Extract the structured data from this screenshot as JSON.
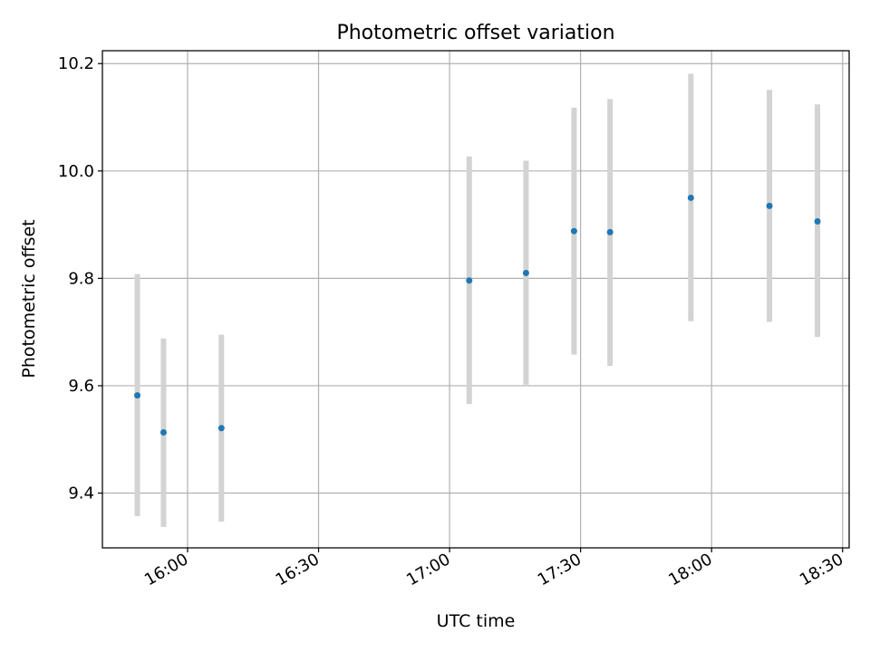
{
  "chart_data": {
    "type": "scatter",
    "title": "Photometric offset variation",
    "xlabel": "UTC time",
    "ylabel": "Photometric offset",
    "x_unit": "HH:MM",
    "xlim": [
      "15:40:30",
      "18:31:30"
    ],
    "ylim": [
      9.298,
      10.224
    ],
    "xticks": [
      "16:00",
      "16:30",
      "17:00",
      "17:30",
      "18:00",
      "18:30"
    ],
    "yticks": [
      9.4,
      9.6,
      9.8,
      10.0,
      10.2
    ],
    "ytick_labels": [
      "9.4",
      "9.6",
      "9.8",
      "10.0",
      "10.2"
    ],
    "grid": true,
    "points": [
      {
        "x": "15:48:30",
        "y": 9.582,
        "err_low": 9.357,
        "err_high": 9.808
      },
      {
        "x": "15:54:30",
        "y": 9.513,
        "err_low": 9.337,
        "err_high": 9.688
      },
      {
        "x": "16:07:45",
        "y": 9.521,
        "err_low": 9.347,
        "err_high": 9.695
      },
      {
        "x": "17:04:30",
        "y": 9.796,
        "err_low": 9.566,
        "err_high": 10.027
      },
      {
        "x": "17:17:30",
        "y": 9.81,
        "err_low": 9.602,
        "err_high": 10.019
      },
      {
        "x": "17:28:30",
        "y": 9.888,
        "err_low": 9.658,
        "err_high": 10.118
      },
      {
        "x": "17:36:45",
        "y": 9.886,
        "err_low": 9.637,
        "err_high": 10.134
      },
      {
        "x": "17:55:15",
        "y": 9.95,
        "err_low": 9.72,
        "err_high": 10.181
      },
      {
        "x": "18:13:15",
        "y": 9.935,
        "err_low": 9.719,
        "err_high": 10.151
      },
      {
        "x": "18:24:15",
        "y": 9.906,
        "err_low": 9.691,
        "err_high": 10.124
      }
    ],
    "colors": {
      "marker": "#1f77b4",
      "errorbar": "#d3d3d3",
      "grid": "#b0b0b0",
      "axes": "#000000"
    }
  }
}
